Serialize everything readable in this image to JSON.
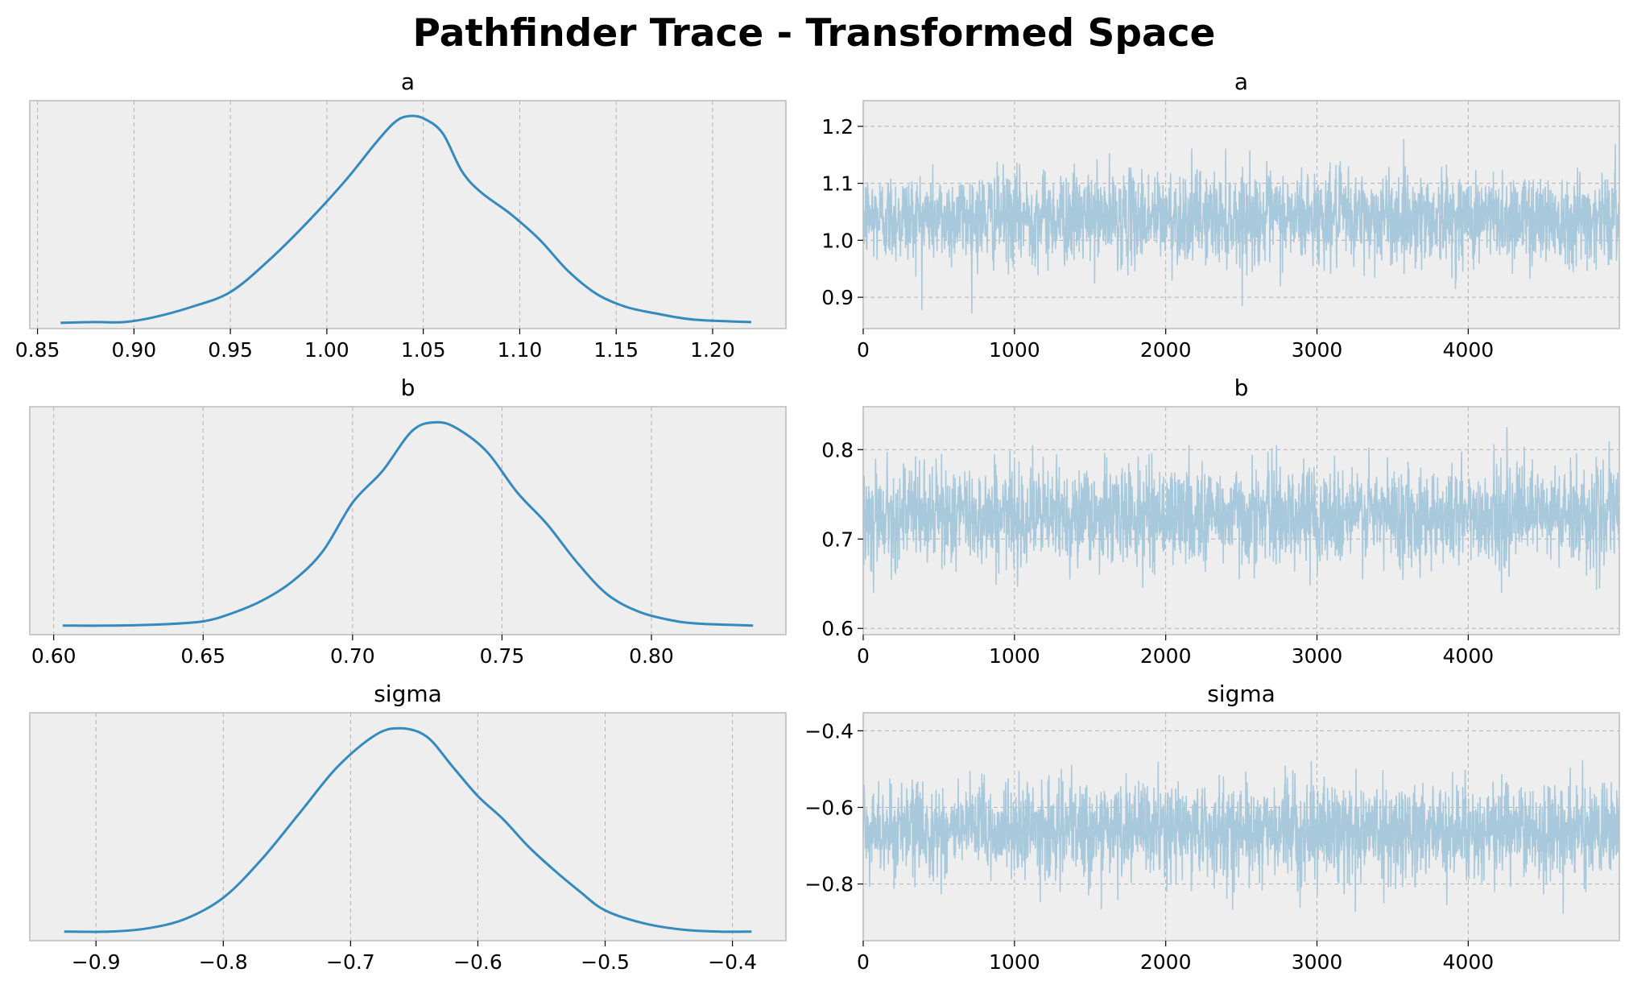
{
  "title": "Pathfinder Trace - Transformed Space",
  "colors": {
    "kde_line": "#348abd",
    "trace_line": "#a8c8dc",
    "axes_bg": "#eeeeee",
    "axes_edge": "#bcbcbc",
    "grid": "#b2b2b2"
  },
  "chart_data": [
    {
      "type": "line",
      "variable": "a",
      "panel": "density",
      "title": "a",
      "xlim": [
        0.846,
        1.238
      ],
      "x_ticks": [
        0.85,
        0.9,
        0.95,
        1.0,
        1.05,
        1.1,
        1.15,
        1.2
      ],
      "x_tick_labels": [
        "0.85",
        "0.90",
        "0.95",
        "1.00",
        "1.05",
        "1.10",
        "1.15",
        "1.20"
      ],
      "y_ticks_shown": false,
      "grid": "vertical",
      "x": [
        0.862,
        0.88,
        0.895,
        0.91,
        0.93,
        0.95,
        0.97,
        0.99,
        1.01,
        1.025,
        1.035,
        1.042,
        1.05,
        1.06,
        1.07,
        1.08,
        1.095,
        1.11,
        1.125,
        1.14,
        1.155,
        1.17,
        1.19,
        1.22
      ],
      "y": [
        0.005,
        0.008,
        0.008,
        0.03,
        0.08,
        0.15,
        0.3,
        0.48,
        0.68,
        0.85,
        0.95,
        0.98,
        0.97,
        0.9,
        0.72,
        0.62,
        0.52,
        0.4,
        0.25,
        0.14,
        0.08,
        0.05,
        0.02,
        0.008
      ]
    },
    {
      "type": "line",
      "variable": "a",
      "panel": "trace",
      "title": "a",
      "xlim": [
        0,
        4999
      ],
      "ylim": [
        0.845,
        1.245
      ],
      "x_ticks": [
        0,
        1000,
        2000,
        3000,
        4000
      ],
      "x_tick_labels": [
        "0",
        "1000",
        "2000",
        "3000",
        "4000"
      ],
      "y_ticks": [
        0.9,
        1.0,
        1.1,
        1.2
      ],
      "y_tick_labels": [
        "0.9",
        "1.0",
        "1.1",
        "1.2"
      ],
      "grid": "both",
      "n_draws": 5000,
      "center": 1.04,
      "spread_sd": 0.04,
      "observed_min": 0.86,
      "observed_max": 1.22
    },
    {
      "type": "line",
      "variable": "b",
      "panel": "density",
      "title": "b",
      "xlim": [
        0.592,
        0.845
      ],
      "x_ticks": [
        0.6,
        0.65,
        0.7,
        0.75,
        0.8
      ],
      "x_tick_labels": [
        "0.60",
        "0.65",
        "0.70",
        "0.75",
        "0.80"
      ],
      "y_ticks_shown": false,
      "grid": "vertical",
      "x": [
        0.603,
        0.62,
        0.635,
        0.65,
        0.66,
        0.67,
        0.68,
        0.69,
        0.7,
        0.71,
        0.72,
        0.728,
        0.735,
        0.745,
        0.755,
        0.765,
        0.775,
        0.785,
        0.795,
        0.805,
        0.815,
        0.834
      ],
      "y": [
        0.02,
        0.02,
        0.025,
        0.04,
        0.08,
        0.14,
        0.23,
        0.37,
        0.6,
        0.75,
        0.94,
        0.98,
        0.95,
        0.84,
        0.65,
        0.5,
        0.32,
        0.17,
        0.09,
        0.05,
        0.03,
        0.02
      ]
    },
    {
      "type": "line",
      "variable": "b",
      "panel": "trace",
      "title": "b",
      "xlim": [
        0,
        4999
      ],
      "ylim": [
        0.593,
        0.848
      ],
      "x_ticks": [
        0,
        1000,
        2000,
        3000,
        4000
      ],
      "x_tick_labels": [
        "0",
        "1000",
        "2000",
        "3000",
        "4000"
      ],
      "y_ticks": [
        0.6,
        0.7,
        0.8
      ],
      "y_tick_labels": [
        "0.6",
        "0.7",
        "0.8"
      ],
      "grid": "both",
      "n_draws": 5000,
      "center": 0.727,
      "spread_sd": 0.027,
      "observed_min": 0.6,
      "observed_max": 0.835
    },
    {
      "type": "line",
      "variable": "sigma",
      "panel": "density",
      "title": "sigma",
      "xlim": [
        -0.952,
        -0.358
      ],
      "x_ticks": [
        -0.9,
        -0.8,
        -0.7,
        -0.6,
        -0.5,
        -0.4
      ],
      "x_tick_labels": [
        "−0.9",
        "−0.8",
        "−0.7",
        "−0.6",
        "−0.5",
        "−0.4"
      ],
      "y_ticks_shown": false,
      "grid": "vertical",
      "x": [
        -0.925,
        -0.89,
        -0.86,
        -0.83,
        -0.8,
        -0.77,
        -0.74,
        -0.71,
        -0.68,
        -0.66,
        -0.64,
        -0.62,
        -0.6,
        -0.58,
        -0.56,
        -0.54,
        -0.52,
        -0.5,
        -0.47,
        -0.44,
        -0.41,
        -0.385
      ],
      "y": [
        0.02,
        0.02,
        0.035,
        0.08,
        0.18,
        0.36,
        0.58,
        0.8,
        0.95,
        0.98,
        0.94,
        0.8,
        0.66,
        0.55,
        0.42,
        0.31,
        0.21,
        0.12,
        0.06,
        0.03,
        0.02,
        0.02
      ]
    },
    {
      "type": "line",
      "variable": "sigma",
      "panel": "trace",
      "title": "sigma",
      "xlim": [
        0,
        4999
      ],
      "ylim": [
        -0.948,
        -0.353
      ],
      "x_ticks": [
        0,
        1000,
        2000,
        3000,
        4000
      ],
      "x_tick_labels": [
        "0",
        "1000",
        "2000",
        "3000",
        "4000"
      ],
      "y_ticks": [
        -0.8,
        -0.6,
        -0.4
      ],
      "y_tick_labels": [
        "−0.8",
        "−0.6",
        "−0.4"
      ],
      "grid": "both",
      "n_draws": 5000,
      "center": -0.66,
      "spread_sd": 0.06,
      "observed_min": -0.93,
      "observed_max": -0.38
    }
  ]
}
